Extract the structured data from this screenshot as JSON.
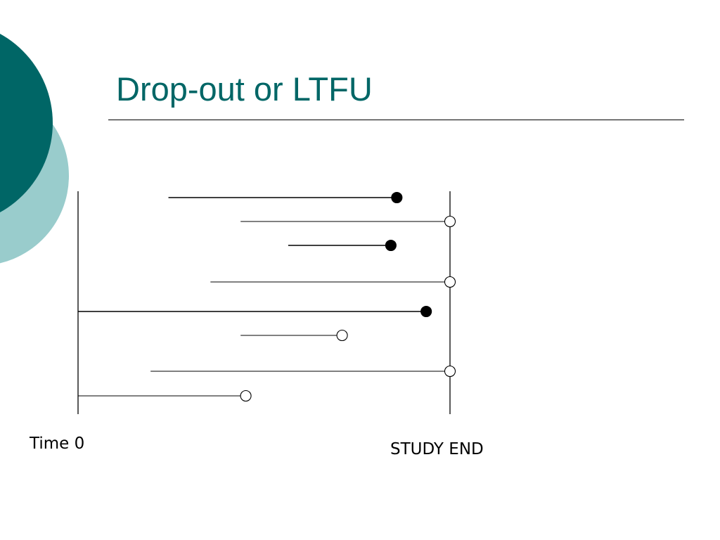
{
  "slide": {
    "title": "Drop-out or LTFU"
  },
  "colors": {
    "title": "#006666",
    "circle_dark": "#006666",
    "circle_light": "#99CCCC",
    "line": "#000000",
    "event_marker": "#000000",
    "censored_marker": "#ffffff"
  },
  "diagram": {
    "labels": {
      "time0": "Time 0",
      "study_end": "STUDY END"
    },
    "participants": [
      {
        "start": 0.243,
        "end": 0.857,
        "outcome": "event"
      },
      {
        "start": 0.437,
        "end": 1.0,
        "outcome": "censored"
      },
      {
        "start": 0.565,
        "end": 0.841,
        "outcome": "event"
      },
      {
        "start": 0.356,
        "end": 1.0,
        "outcome": "censored"
      },
      {
        "start": 0.0,
        "end": 0.936,
        "outcome": "event"
      },
      {
        "start": 0.437,
        "end": 0.71,
        "outcome": "censored"
      },
      {
        "start": 0.195,
        "end": 1.0,
        "outcome": "censored"
      },
      {
        "start": 0.0,
        "end": 0.451,
        "outcome": "censored"
      }
    ]
  }
}
